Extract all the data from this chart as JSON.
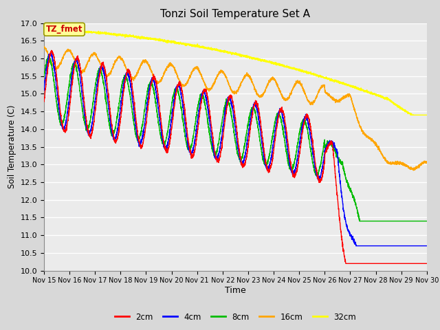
{
  "title": "Tonzi Soil Temperature Set A",
  "xlabel": "Time",
  "ylabel": "Soil Temperature (C)",
  "ylim": [
    10.0,
    17.0
  ],
  "yticks": [
    10.0,
    10.5,
    11.0,
    11.5,
    12.0,
    12.5,
    13.0,
    13.5,
    14.0,
    14.5,
    15.0,
    15.5,
    16.0,
    16.5,
    17.0
  ],
  "colors": {
    "2cm": "#ff0000",
    "4cm": "#0000ff",
    "8cm": "#00bb00",
    "16cm": "#ffa500",
    "32cm": "#ffff00"
  },
  "annotation_text": "TZ_fmet",
  "annotation_color": "#cc0000",
  "annotation_bg": "#ffff99",
  "annotation_border": "#999900",
  "bg_color": "#d8d8d8",
  "plot_bg_color": "#ebebeb",
  "grid_color": "#ffffff",
  "xtick_labels": [
    "Nov 15",
    "Nov 16",
    "Nov 17",
    "Nov 18",
    "Nov 19",
    "Nov 20",
    "Nov 21",
    "Nov 22",
    "Nov 23",
    "Nov 24",
    "Nov 25",
    "Nov 26",
    "Nov 27",
    "Nov 28",
    "Nov 29",
    "Nov 30"
  ],
  "n_points": 3600
}
